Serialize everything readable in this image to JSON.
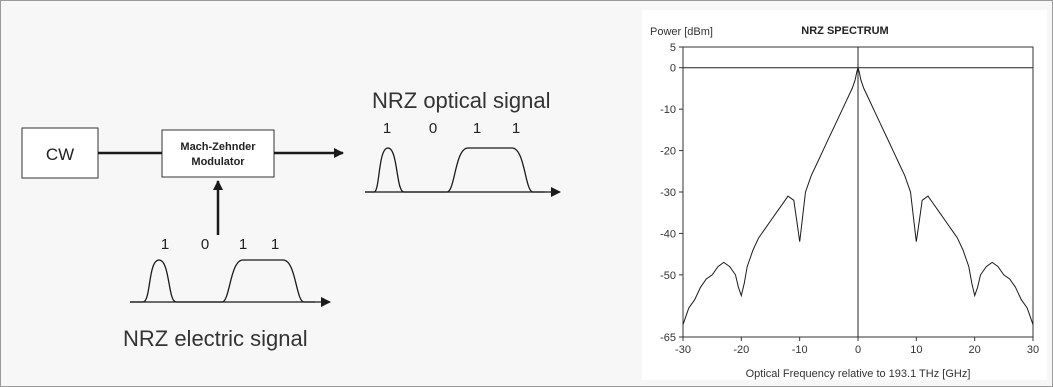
{
  "diagram": {
    "cw_label": "CW",
    "modulator_line1": "Mach-Zehnder",
    "modulator_line2": "Modulator",
    "optical_title": "NRZ optical signal",
    "electric_title": "NRZ electric signal",
    "optical_bits": [
      "1",
      "0",
      "1",
      "1"
    ],
    "electric_bits": [
      "1",
      "0",
      "1",
      "1"
    ]
  },
  "chart_data": {
    "type": "line",
    "title": "NRZ SPECTRUM",
    "ylabel": "Power [dBm]",
    "xlabel": "Optical Frequency relative to 193.1 THz [GHz]",
    "xlim": [
      -30,
      30
    ],
    "ylim": [
      -65,
      5
    ],
    "xticks": [
      "-30",
      "-20",
      "-10",
      "0",
      "10",
      "20",
      "30"
    ],
    "yticks": [
      "5",
      "0",
      "-10",
      "-20",
      "-30",
      "-40",
      "-50",
      "-65"
    ],
    "grid": false,
    "series": [
      {
        "x": [
          -30,
          -29.5,
          -29,
          -28,
          -27,
          -26,
          -25,
          -24,
          -23,
          -22,
          -21,
          -20.5,
          -20,
          -19.5,
          -19,
          -18,
          -17,
          -16,
          -15,
          -14,
          -13,
          -12,
          -11,
          -10.5,
          -10,
          -9.5,
          -9,
          -8,
          -7,
          -6,
          -5,
          -4,
          -3,
          -2,
          -1,
          -0.5,
          -0.2,
          0,
          0.2,
          0.5,
          1,
          2,
          3,
          4,
          5,
          6,
          7,
          8,
          9,
          9.5,
          10,
          10.5,
          11,
          12,
          13,
          14,
          15,
          16,
          17,
          18,
          19,
          19.5,
          20,
          20.5,
          21,
          22,
          23,
          24,
          25,
          26,
          27,
          28,
          29,
          29.5,
          30
        ],
        "y": [
          -62,
          -60,
          -58,
          -56,
          -53,
          -51,
          -50,
          -48,
          -47,
          -48,
          -50,
          -53,
          -55,
          -52,
          -48,
          -44,
          -41,
          -39,
          -37,
          -35,
          -33,
          -31,
          -32,
          -37,
          -42,
          -36,
          -30,
          -26,
          -23,
          -20,
          -17,
          -14,
          -11,
          -8,
          -5,
          -3,
          -1,
          0,
          -1,
          -3,
          -5,
          -8,
          -11,
          -14,
          -17,
          -20,
          -23,
          -26,
          -30,
          -36,
          -42,
          -37,
          -32,
          -31,
          -33,
          -35,
          -37,
          -39,
          -41,
          -44,
          -48,
          -52,
          -55,
          -53,
          -50,
          -48,
          -47,
          -48,
          -50,
          -51,
          -53,
          -56,
          -58,
          -60,
          -62
        ]
      }
    ],
    "reference_line_y": 0,
    "reference_line_x": 0
  }
}
